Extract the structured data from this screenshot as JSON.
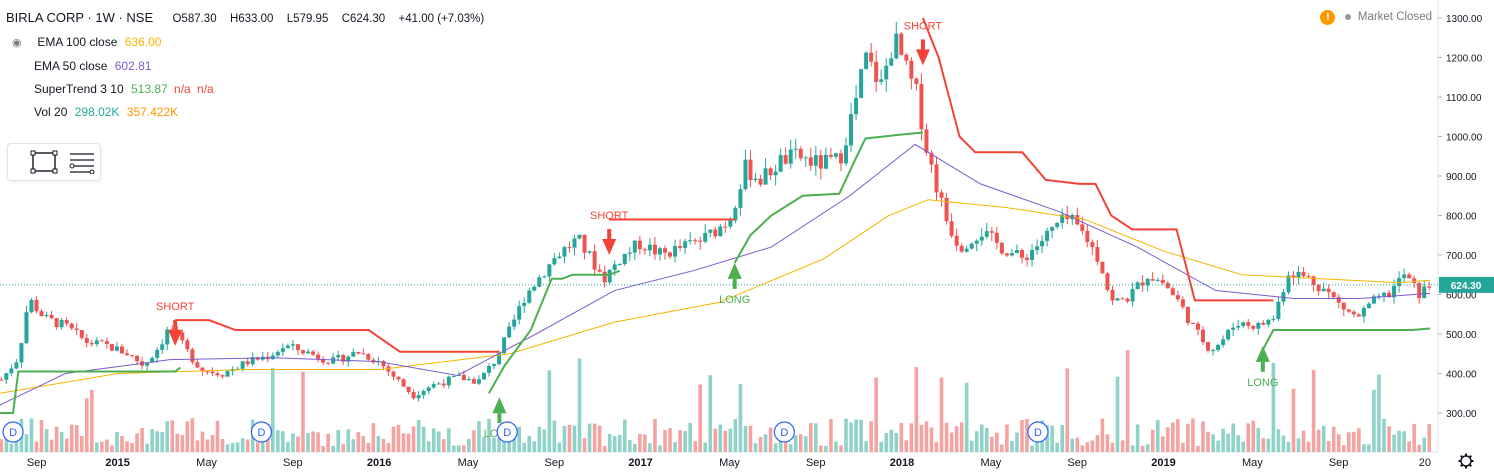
{
  "header": {
    "symbol": "BIRLA CORP · 1W · NSE",
    "open": "O587.30",
    "high": "H633.00",
    "low": "L579.95",
    "close": "C624.30",
    "change": "+41.00 (+7.03%)"
  },
  "indicators": [
    {
      "label": "EMA 100 close",
      "value": "636.00",
      "color": "#f5b400"
    },
    {
      "label": "EMA 50 close",
      "value": "602.81",
      "color": "#7b5ccc"
    },
    {
      "label": "SuperTrend 3 10",
      "value": "513.87",
      "extra": "n/a",
      "extra2": "n/a",
      "color": "#4caf50",
      "extra_color": "#f44336"
    },
    {
      "label": "Vol 20",
      "value": "298.02K",
      "value2": "357.422K",
      "color": "#26a69a",
      "color2": "#ff9800"
    }
  ],
  "market_status": {
    "warn": "!",
    "text": "Market Closed"
  },
  "price_tag": "624.30",
  "colors": {
    "up": "#26a69a",
    "down": "#ef5350",
    "ema100": "#f5b400",
    "ema50": "#7b5ccc",
    "st_up": "#4caf50",
    "st_down": "#f44336",
    "vol_up": "#8fd2c8",
    "vol_down": "#f5a3a1"
  },
  "icons": [
    "eye-icon",
    "rectangle-tool-icon",
    "lines-tool-icon",
    "gear-icon",
    "warning-icon"
  ],
  "chart_data": {
    "type": "candlestick",
    "yaxis": {
      "min": 250,
      "max": 1320,
      "ticks": [
        300,
        400,
        500,
        600,
        700,
        800,
        900,
        1000,
        1100,
        1200,
        1300
      ],
      "tick_labels": [
        "300.00",
        "400.00",
        "500.00",
        "600.00",
        "700.00",
        "800.00",
        "900.00",
        "1000.00",
        "1100.00",
        "1200.00",
        "1300.00"
      ]
    },
    "xaxis": {
      "start": 2014.55,
      "end": 2020.05,
      "ticks": [
        {
          "t": 2014.69,
          "label": "Sep"
        },
        {
          "t": 2015.0,
          "label": "2015"
        },
        {
          "t": 2015.34,
          "label": "May"
        },
        {
          "t": 2015.67,
          "label": "Sep"
        },
        {
          "t": 2016.0,
          "label": "2016"
        },
        {
          "t": 2016.34,
          "label": "May"
        },
        {
          "t": 2016.67,
          "label": "Sep"
        },
        {
          "t": 2017.0,
          "label": "2017"
        },
        {
          "t": 2017.34,
          "label": "May"
        },
        {
          "t": 2017.67,
          "label": "Sep"
        },
        {
          "t": 2018.0,
          "label": "2018"
        },
        {
          "t": 2018.34,
          "label": "May"
        },
        {
          "t": 2018.67,
          "label": "Sep"
        },
        {
          "t": 2019.0,
          "label": "2019"
        },
        {
          "t": 2019.34,
          "label": "May"
        },
        {
          "t": 2019.67,
          "label": "Sep"
        },
        {
          "t": 2020.0,
          "label": "20"
        }
      ]
    },
    "price_path": [
      [
        2014.55,
        380
      ],
      [
        2014.62,
        440
      ],
      [
        2014.66,
        590
      ],
      [
        2014.72,
        540
      ],
      [
        2014.8,
        520
      ],
      [
        2014.88,
        480
      ],
      [
        2014.96,
        470
      ],
      [
        2015.04,
        450
      ],
      [
        2015.1,
        420
      ],
      [
        2015.16,
        470
      ],
      [
        2015.2,
        520
      ],
      [
        2015.26,
        460
      ],
      [
        2015.32,
        410
      ],
      [
        2015.4,
        400
      ],
      [
        2015.5,
        430
      ],
      [
        2015.58,
        445
      ],
      [
        2015.64,
        470
      ],
      [
        2015.72,
        455
      ],
      [
        2015.82,
        430
      ],
      [
        2015.92,
        455
      ],
      [
        2016.0,
        430
      ],
      [
        2016.06,
        390
      ],
      [
        2016.13,
        345
      ],
      [
        2016.2,
        370
      ],
      [
        2016.3,
        390
      ],
      [
        2016.38,
        380
      ],
      [
        2016.44,
        430
      ],
      [
        2016.5,
        510
      ],
      [
        2016.56,
        600
      ],
      [
        2016.62,
        650
      ],
      [
        2016.68,
        700
      ],
      [
        2016.76,
        740
      ],
      [
        2016.82,
        680
      ],
      [
        2016.86,
        640
      ],
      [
        2016.92,
        690
      ],
      [
        2017.0,
        730
      ],
      [
        2017.08,
        700
      ],
      [
        2017.16,
        720
      ],
      [
        2017.24,
        740
      ],
      [
        2017.3,
        770
      ],
      [
        2017.34,
        790
      ],
      [
        2017.4,
        920
      ],
      [
        2017.46,
        890
      ],
      [
        2017.54,
        940
      ],
      [
        2017.6,
        950
      ],
      [
        2017.68,
        930
      ],
      [
        2017.76,
        940
      ],
      [
        2017.82,
        1080
      ],
      [
        2017.86,
        1200
      ],
      [
        2017.92,
        1130
      ],
      [
        2017.97,
        1250
      ],
      [
        2018.02,
        1160
      ],
      [
        2018.06,
        1100
      ],
      [
        2018.09,
        980
      ],
      [
        2018.13,
        880
      ],
      [
        2018.17,
        790
      ],
      [
        2018.22,
        720
      ],
      [
        2018.3,
        760
      ],
      [
        2018.38,
        720
      ],
      [
        2018.46,
        690
      ],
      [
        2018.54,
        740
      ],
      [
        2018.6,
        780
      ],
      [
        2018.64,
        790
      ],
      [
        2018.7,
        750
      ],
      [
        2018.76,
        680
      ],
      [
        2018.8,
        580
      ],
      [
        2018.86,
        590
      ],
      [
        2018.94,
        650
      ],
      [
        2019.0,
        630
      ],
      [
        2019.06,
        580
      ],
      [
        2019.12,
        510
      ],
      [
        2019.18,
        460
      ],
      [
        2019.22,
        480
      ],
      [
        2019.28,
        530
      ],
      [
        2019.36,
        520
      ],
      [
        2019.42,
        540
      ],
      [
        2019.48,
        660
      ],
      [
        2019.56,
        640
      ],
      [
        2019.62,
        610
      ],
      [
        2019.68,
        570
      ],
      [
        2019.74,
        540
      ],
      [
        2019.8,
        580
      ],
      [
        2019.86,
        600
      ],
      [
        2019.92,
        650
      ],
      [
        2019.98,
        600
      ],
      [
        2020.02,
        624
      ]
    ],
    "ema100_path": [
      [
        2014.55,
        350
      ],
      [
        2015.0,
        400
      ],
      [
        2015.5,
        410
      ],
      [
        2016.0,
        410
      ],
      [
        2016.5,
        450
      ],
      [
        2016.9,
        530
      ],
      [
        2017.3,
        580
      ],
      [
        2017.7,
        690
      ],
      [
        2017.95,
        800
      ],
      [
        2018.1,
        840
      ],
      [
        2018.4,
        820
      ],
      [
        2018.7,
        790
      ],
      [
        2019.0,
        710
      ],
      [
        2019.3,
        650
      ],
      [
        2019.6,
        640
      ],
      [
        2019.9,
        630
      ],
      [
        2020.02,
        636
      ]
    ],
    "ema50_path": [
      [
        2014.55,
        320
      ],
      [
        2014.8,
        400
      ],
      [
        2015.2,
        435
      ],
      [
        2015.6,
        440
      ],
      [
        2016.0,
        430
      ],
      [
        2016.3,
        395
      ],
      [
        2016.6,
        500
      ],
      [
        2016.9,
        610
      ],
      [
        2017.2,
        660
      ],
      [
        2017.5,
        720
      ],
      [
        2017.8,
        850
      ],
      [
        2018.05,
        980
      ],
      [
        2018.3,
        880
      ],
      [
        2018.6,
        810
      ],
      [
        2018.9,
        720
      ],
      [
        2019.2,
        610
      ],
      [
        2019.5,
        590
      ],
      [
        2019.75,
        590
      ],
      [
        2020.02,
        603
      ]
    ],
    "supertrend_segments": [
      {
        "trend": "up",
        "points": [
          [
            2014.55,
            300
          ],
          [
            2014.6,
            300
          ],
          [
            2014.62,
            405
          ],
          [
            2015.22,
            405
          ],
          [
            2015.24,
            415
          ]
        ]
      },
      {
        "trend": "down",
        "points": [
          [
            2015.22,
            535
          ],
          [
            2015.35,
            535
          ],
          [
            2015.45,
            510
          ],
          [
            2015.96,
            510
          ],
          [
            2016.08,
            455
          ],
          [
            2016.46,
            455
          ]
        ]
      },
      {
        "trend": "up",
        "points": [
          [
            2016.42,
            350
          ],
          [
            2016.48,
            420
          ],
          [
            2016.58,
            510
          ],
          [
            2016.66,
            640
          ],
          [
            2016.7,
            640
          ],
          [
            2016.74,
            650
          ],
          [
            2016.88,
            650
          ],
          [
            2016.92,
            660
          ]
        ]
      },
      {
        "trend": "down",
        "points": [
          [
            2016.88,
            790
          ],
          [
            2017.36,
            790
          ]
        ]
      },
      {
        "trend": "up",
        "points": [
          [
            2017.36,
            680
          ],
          [
            2017.42,
            750
          ],
          [
            2017.5,
            800
          ],
          [
            2017.62,
            850
          ],
          [
            2017.76,
            855
          ],
          [
            2017.82,
            940
          ],
          [
            2017.86,
            995
          ],
          [
            2018.0,
            1005
          ],
          [
            2018.08,
            1010
          ]
        ]
      },
      {
        "trend": "down",
        "points": [
          [
            2018.08,
            1300
          ],
          [
            2018.14,
            1200
          ],
          [
            2018.22,
            1000
          ],
          [
            2018.28,
            960
          ],
          [
            2018.46,
            960
          ],
          [
            2018.55,
            890
          ],
          [
            2018.68,
            880
          ],
          [
            2018.74,
            880
          ],
          [
            2018.8,
            800
          ],
          [
            2018.88,
            765
          ],
          [
            2019.05,
            765
          ],
          [
            2019.12,
            585
          ],
          [
            2019.3,
            585
          ],
          [
            2019.42,
            585
          ]
        ]
      },
      {
        "trend": "up",
        "points": [
          [
            2019.38,
            460
          ],
          [
            2019.42,
            510
          ],
          [
            2019.95,
            510
          ],
          [
            2020.02,
            514
          ]
        ]
      }
    ],
    "signals": [
      {
        "type": "SHORT",
        "t": 2015.22,
        "price": 470
      },
      {
        "type": "LONG",
        "t": 2016.46,
        "price": 340
      },
      {
        "type": "SHORT",
        "t": 2016.88,
        "price": 700
      },
      {
        "type": "LONG",
        "t": 2017.36,
        "price": 680
      },
      {
        "type": "SHORT",
        "t": 2018.08,
        "price": 1180
      },
      {
        "type": "LONG",
        "t": 2019.38,
        "price": 470
      }
    ],
    "dividend_markers": [
      {
        "t": 2014.6,
        "label": "D"
      },
      {
        "t": 2015.55,
        "label": "D"
      },
      {
        "t": 2016.49,
        "label": "D"
      },
      {
        "t": 2017.55,
        "label": "D"
      },
      {
        "t": 2018.52,
        "label": "D"
      }
    ],
    "volume": {
      "note": "weekly volume bars along bottom"
    }
  }
}
